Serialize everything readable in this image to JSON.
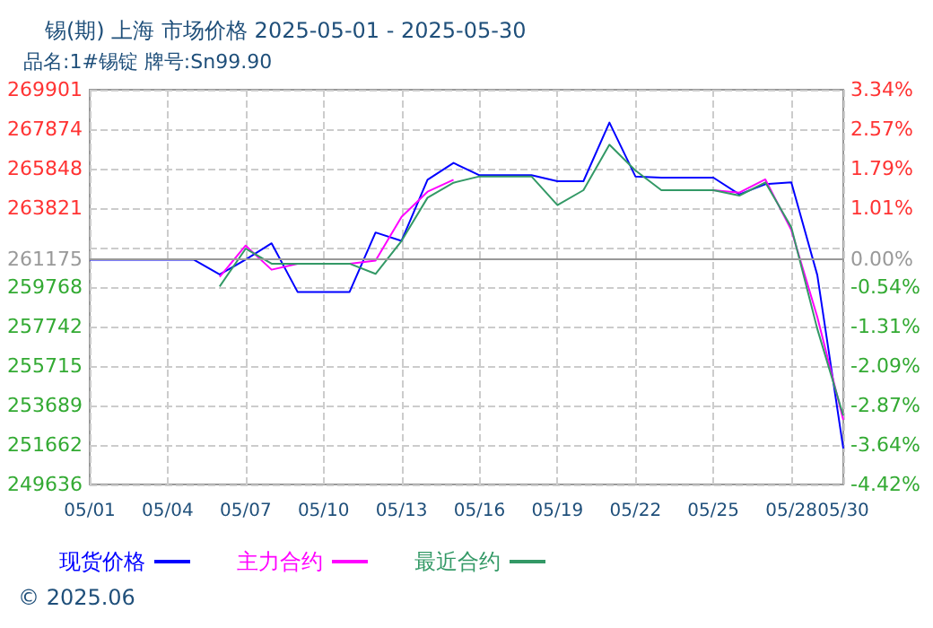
{
  "chart_data": {
    "type": "line",
    "title": "锡(期) 上海 市场价格 2025-05-01 - 2025-05-30",
    "subtitle": "品名:1#锡锭 牌号:Sn99.90",
    "x": [
      "2025-05-01",
      "2025-05-02",
      "2025-05-03",
      "2025-05-04",
      "2025-05-05",
      "2025-05-06",
      "2025-05-07",
      "2025-05-08",
      "2025-05-09",
      "2025-05-10",
      "2025-05-11",
      "2025-05-12",
      "2025-05-13",
      "2025-05-14",
      "2025-05-15",
      "2025-05-16",
      "2025-05-17",
      "2025-05-18",
      "2025-05-19",
      "2025-05-20",
      "2025-05-21",
      "2025-05-22",
      "2025-05-23",
      "2025-05-24",
      "2025-05-25",
      "2025-05-26",
      "2025-05-27",
      "2025-05-28",
      "2025-05-29",
      "2025-05-30"
    ],
    "series": [
      {
        "name": "现货价格",
        "color": "#0000ff",
        "values": [
          261175,
          261175,
          261175,
          261175,
          261175,
          260415,
          261175,
          262016,
          259520,
          259520,
          259520,
          262570,
          262140,
          265281,
          266143,
          265511,
          265511,
          265511,
          265204,
          265204,
          268213,
          265450,
          265388,
          265388,
          265388,
          264529,
          265050,
          265143,
          260384,
          251480
        ]
      },
      {
        "name": "主力合约",
        "color": "#ff00ff",
        "values": [
          null,
          null,
          null,
          null,
          null,
          260290,
          261900,
          260661,
          260970,
          260970,
          260970,
          261123,
          263373,
          264665,
          265281,
          null,
          null,
          null,
          null,
          null,
          null,
          null,
          null,
          null,
          264742,
          264620,
          265297,
          262700,
          258235,
          252955
        ]
      },
      {
        "name": "最近合约",
        "color": "#339966",
        "values": [
          null,
          null,
          null,
          null,
          null,
          259800,
          261740,
          260970,
          260970,
          260970,
          260970,
          260446,
          262140,
          264357,
          265127,
          265450,
          265450,
          265450,
          263976,
          264743,
          267077,
          265757,
          264743,
          264743,
          264743,
          264467,
          265143,
          262840,
          257621,
          253170
        ]
      }
    ],
    "xlim": [
      "2025-05-01",
      "2025-05-30"
    ],
    "xticks": [
      {
        "value": "2025-05-01",
        "label": "05/01"
      },
      {
        "value": "2025-05-04",
        "label": "05/04"
      },
      {
        "value": "2025-05-07",
        "label": "05/07"
      },
      {
        "value": "2025-05-10",
        "label": "05/10"
      },
      {
        "value": "2025-05-13",
        "label": "05/13"
      },
      {
        "value": "2025-05-16",
        "label": "05/16"
      },
      {
        "value": "2025-05-19",
        "label": "05/19"
      },
      {
        "value": "2025-05-22",
        "label": "05/22"
      },
      {
        "value": "2025-05-25",
        "label": "05/25"
      },
      {
        "value": "2025-05-28",
        "label": "05/28"
      },
      {
        "value": "2025-05-30",
        "label": "05/30"
      }
    ],
    "ylim": [
      249636,
      269901
    ],
    "yticks": [
      249636,
      251662,
      253689,
      255715,
      257742,
      259768,
      261175,
      {
        "value": 261795,
        "label": null
      },
      263821,
      265848,
      267874,
      269901
    ],
    "y2lim": [
      -4.42,
      3.34
    ],
    "y2ticks": [
      {
        "value": -4.42,
        "label": "-4.42%"
      },
      {
        "value": -3.64,
        "label": "-3.64%"
      },
      {
        "value": -2.87,
        "label": "-2.87%"
      },
      {
        "value": -2.09,
        "label": "-2.09%"
      },
      {
        "value": -1.31,
        "label": "-1.31%"
      },
      {
        "value": -0.54,
        "label": "-0.54%"
      },
      {
        "value": 0,
        "label": "0.00%"
      },
      {
        "value": 1.01,
        "label": "1.01%"
      },
      {
        "value": 1.79,
        "label": "1.79%"
      },
      {
        "value": 2.57,
        "label": "2.57%"
      },
      {
        "value": 3.34,
        "label": "3.34%"
      }
    ],
    "ref_lines": [
      {
        "axis": "y",
        "value": 261175,
        "color": "#999999",
        "line_style": "solid"
      }
    ],
    "grid": true,
    "legend": "bottom left",
    "marker": "none",
    "line_style": "solid",
    "annotations": [
      "© 2025.06"
    ]
  }
}
